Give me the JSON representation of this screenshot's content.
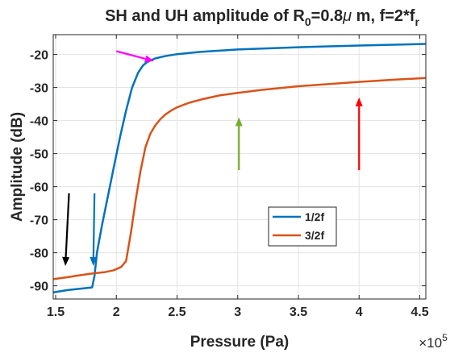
{
  "chart_data": {
    "type": "line",
    "title": {
      "prefix": "SH and UH amplitude of R",
      "sub1": "0",
      "middle": "=0.8",
      "greek": "μ",
      "suffix": " m, f=2*f",
      "sub2": "r"
    },
    "xlabel": "Pressure (Pa)",
    "ylabel": "Amplitude (dB)",
    "x_multiplier": {
      "base": "×10",
      "exponent": "5"
    },
    "xlim": [
      1.48,
      4.55
    ],
    "ylim": [
      -94,
      -14
    ],
    "xticks": [
      1.5,
      2,
      2.5,
      3,
      3.5,
      4,
      4.5
    ],
    "xtick_labels": [
      "1.5",
      "2",
      "2.5",
      "3",
      "3.5",
      "4",
      "4.5"
    ],
    "yticks": [
      -90,
      -80,
      -70,
      -60,
      -50,
      -40,
      -30,
      -20
    ],
    "ytick_labels": [
      "-90",
      "-80",
      "-70",
      "-60",
      "-50",
      "-40",
      "-30",
      "-20"
    ],
    "grid": true,
    "legend_position": "center-right",
    "series": [
      {
        "name": "1/2f",
        "color": "#0072BD",
        "x": [
          1.48,
          1.6,
          1.7,
          1.8,
          1.82,
          1.84,
          1.88,
          1.93,
          1.98,
          2.03,
          2.08,
          2.13,
          2.18,
          2.22,
          2.25,
          2.28,
          2.32,
          2.4,
          2.5,
          2.7,
          3.0,
          3.5,
          4.0,
          4.55
        ],
        "y": [
          -92,
          -91.3,
          -90.9,
          -90.5,
          -87,
          -80,
          -72,
          -63,
          -54,
          -45,
          -37,
          -30,
          -25.5,
          -23.3,
          -22.4,
          -21.8,
          -21.2,
          -20.5,
          -19.9,
          -19.2,
          -18.5,
          -17.8,
          -17.3,
          -16.8
        ]
      },
      {
        "name": "3/2f",
        "color": "#D95319",
        "x": [
          1.48,
          1.6,
          1.7,
          1.8,
          1.9,
          1.98,
          2.04,
          2.08,
          2.12,
          2.16,
          2.2,
          2.24,
          2.28,
          2.32,
          2.36,
          2.4,
          2.45,
          2.5,
          2.6,
          2.7,
          2.85,
          3.0,
          3.2,
          3.5,
          3.8,
          4.0,
          4.3,
          4.55
        ],
        "y": [
          -88,
          -87.4,
          -86.8,
          -86.3,
          -85.9,
          -85.3,
          -84.3,
          -82.5,
          -74,
          -64,
          -55,
          -48,
          -44,
          -41.5,
          -39.7,
          -38.3,
          -37,
          -36,
          -34.6,
          -33.6,
          -32.4,
          -31.6,
          -30.7,
          -29.6,
          -28.8,
          -28.3,
          -27.6,
          -27.1
        ]
      }
    ],
    "annotations": [
      {
        "type": "arrow",
        "color": "#000000",
        "x1": 1.61,
        "y1": -62,
        "x2": 1.58,
        "y2": -84
      },
      {
        "type": "arrow",
        "color": "#0072BD",
        "x1": 1.82,
        "y1": -62,
        "x2": 1.81,
        "y2": -84
      },
      {
        "type": "arrow",
        "color": "#FF00FF",
        "x1": 2.0,
        "y1": -19,
        "x2": 2.31,
        "y2": -22
      },
      {
        "type": "arrow",
        "color": "#77AC30",
        "x1": 3.01,
        "y1": -55,
        "x2": 3.01,
        "y2": -39
      },
      {
        "type": "arrow",
        "color": "#FF0000",
        "x1": 4.0,
        "y1": -55,
        "x2": 4.0,
        "y2": -33
      }
    ]
  }
}
